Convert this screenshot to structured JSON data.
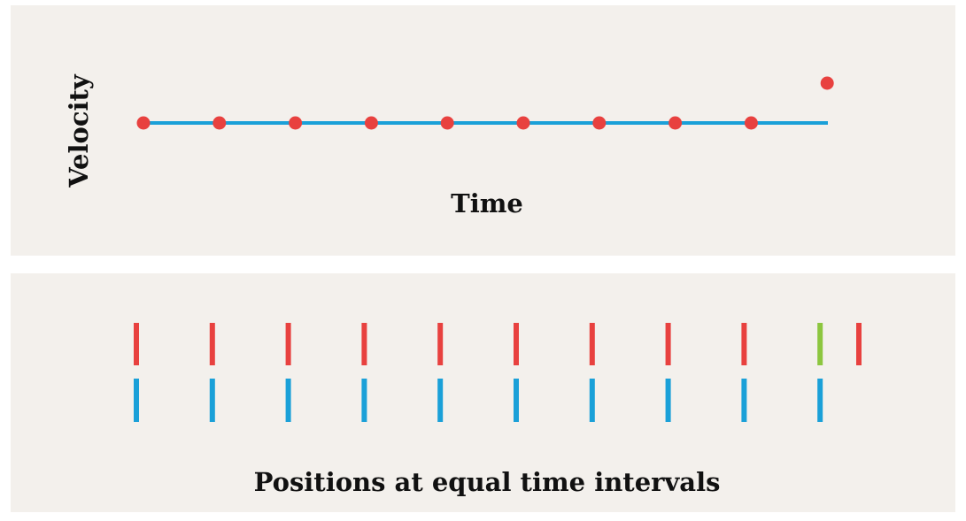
{
  "velocity_chart": {
    "xlabel": "Time",
    "ylabel": "Velocity",
    "line_color": "#1aa0d8",
    "dot_color": "#e8413f",
    "line_dots": 10,
    "outlier_dot": {
      "step": 9,
      "level": "higher"
    }
  },
  "positions_chart": {
    "caption": "Positions at equal time intervals",
    "top_row": {
      "color": "#e8413f",
      "highlight_color": "#8cc63f",
      "marks": 10,
      "highlighted_index": 9,
      "extra_mark": "shifted-right"
    },
    "bottom_row": {
      "color": "#1aa0d8",
      "marks": 10
    }
  }
}
